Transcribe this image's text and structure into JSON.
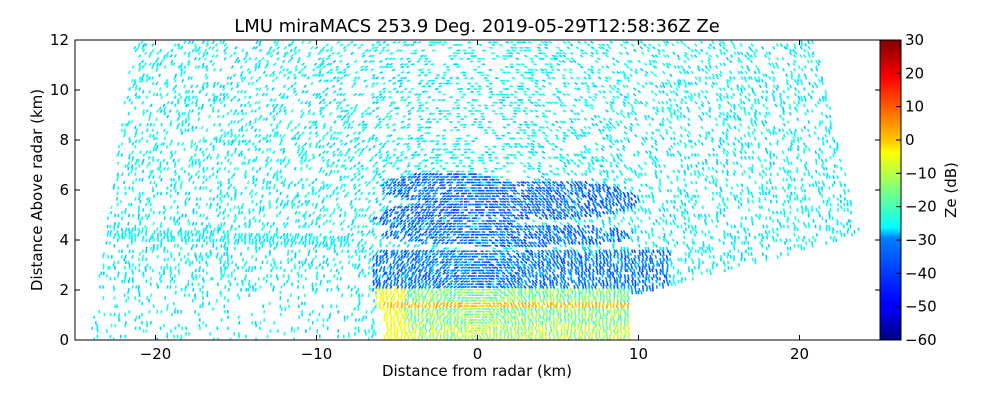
{
  "chart_data": {
    "type": "heatmap",
    "title": "LMU miraMACS 253.9 Deg. 2019-05-29T12:58:36Z  Ze",
    "xlabel": "Distance from radar (km)",
    "ylabel": "Distance Above radar  (km)",
    "xlim": [
      -25,
      25
    ],
    "ylim": [
      0,
      12
    ],
    "xticks": [
      -20,
      -10,
      0,
      10,
      20
    ],
    "xtick_labels": [
      "−20",
      "−10",
      "0",
      "10",
      "20"
    ],
    "yticks": [
      0,
      2,
      4,
      6,
      8,
      10,
      12
    ],
    "ytick_labels": [
      "0",
      "2",
      "4",
      "6",
      "8",
      "10",
      "12"
    ],
    "grid": false,
    "scan_domain": {
      "left_edge_top": [
        -21.5,
        11.3
      ],
      "left_edge_bottom": [
        -24,
        0.5
      ],
      "right_edge_top": [
        21,
        11.9
      ],
      "right_edge_bottom": [
        23.8,
        4.2
      ],
      "lower_cut_start": [
        9.5,
        1.75
      ],
      "lower_cut_end": [
        23.8,
        4.2
      ],
      "near_radar_blank_end": [
        -6,
        0
      ]
    },
    "features": [
      {
        "name": "melting layer bright band",
        "x_range": [
          -6,
          10
        ],
        "height_km": 1.4,
        "ze_db": 5
      },
      {
        "name": "low-level rain",
        "x_range": [
          -6,
          9
        ],
        "height_range_km": [
          0,
          2
        ],
        "ze_db": -12
      },
      {
        "name": "cloud layer",
        "x_range": [
          -6,
          12
        ],
        "height_range_km": [
          2.2,
          3.7
        ],
        "ze_db": -38
      },
      {
        "name": "mid-level cloud",
        "x_range": [
          -8,
          10
        ],
        "height_range_km": [
          4,
          6.8
        ],
        "ze_db": -40
      },
      {
        "name": "clear-air noise",
        "x_range": [
          -24,
          24
        ],
        "height_range_km": [
          0,
          12
        ],
        "ze_db": -30
      }
    ],
    "colorbar": {
      "label": "Ze (dB)",
      "min": -60,
      "max": 30,
      "ticks": [
        30,
        20,
        10,
        0,
        -10,
        -20,
        -30,
        -40,
        -50,
        -60
      ],
      "tick_labels": [
        "30",
        "20",
        "10",
        "0",
        "−10",
        "−20",
        "−30",
        "−40",
        "−50",
        "−60"
      ],
      "colormap": "jet"
    }
  }
}
